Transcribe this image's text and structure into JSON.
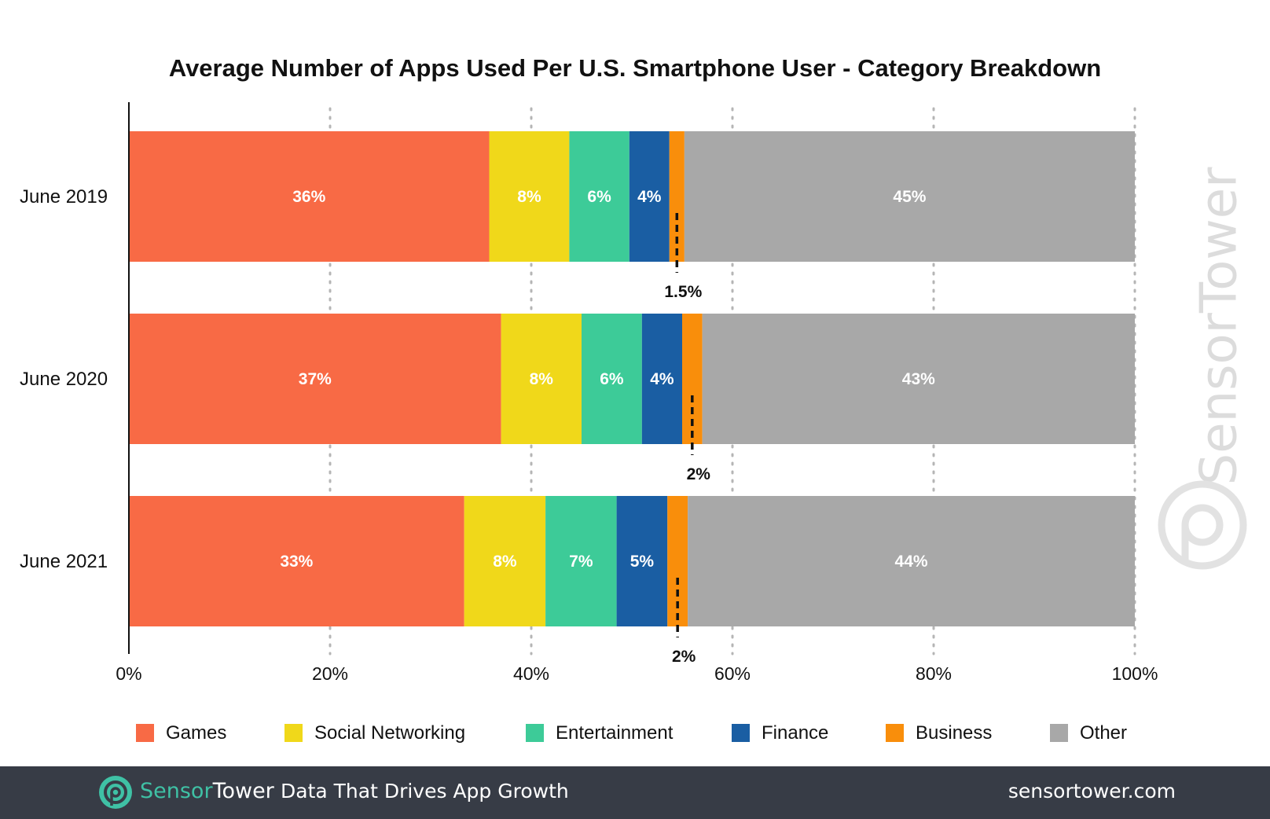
{
  "chart_data": {
    "type": "bar",
    "orientation": "horizontal",
    "stacked": true,
    "title": "Average Number of Apps Used Per U.S. Smartphone User - Category Breakdown",
    "categories": [
      "June 2019",
      "June 2020",
      "June 2021"
    ],
    "xlim": [
      0,
      100
    ],
    "x_ticks": [
      "0%",
      "20%",
      "40%",
      "60%",
      "80%",
      "100%"
    ],
    "grid": "vertical dotted",
    "legend_position": "bottom",
    "series": [
      {
        "name": "Games",
        "color": "#f86a45",
        "values": [
          36,
          37,
          33
        ],
        "labels": [
          "36%",
          "37%",
          "33%"
        ]
      },
      {
        "name": "Social Networking",
        "color": "#f0d81a",
        "values": [
          8,
          8,
          8
        ],
        "labels": [
          "8%",
          "8%",
          "8%"
        ]
      },
      {
        "name": "Entertainment",
        "color": "#3dcb98",
        "values": [
          6,
          6,
          7
        ],
        "labels": [
          "6%",
          "6%",
          "7%"
        ]
      },
      {
        "name": "Finance",
        "color": "#1a5ea3",
        "values": [
          4,
          4,
          5
        ],
        "labels": [
          "4%",
          "4%",
          "5%"
        ]
      },
      {
        "name": "Business",
        "color": "#f98e0b",
        "values": [
          1.5,
          2,
          2
        ],
        "labels": [
          "1.5%",
          "2%",
          "2%"
        ]
      },
      {
        "name": "Other",
        "color": "#a8a8a8",
        "values": [
          45,
          43,
          44
        ],
        "labels": [
          "45%",
          "43%",
          "44%"
        ]
      }
    ]
  },
  "watermark": "SensorTower",
  "footer": {
    "brand_part1": "Sensor",
    "brand_part2": "Tower",
    "tagline": "Data That Drives App Growth",
    "url": "sensortower.com",
    "logo_icon": "sensortower-logo-icon"
  }
}
